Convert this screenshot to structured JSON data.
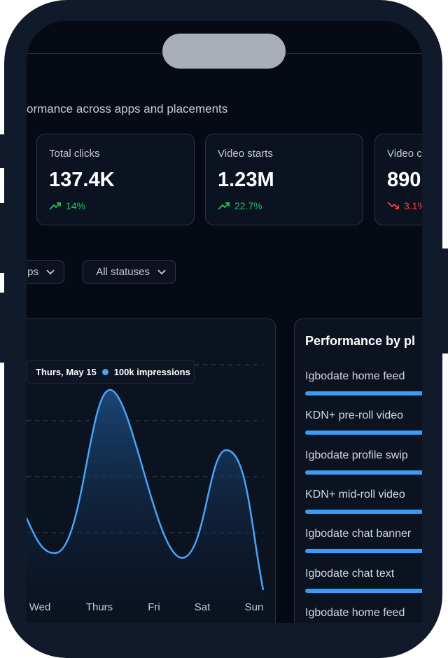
{
  "header": {
    "subtitle": "ormance across apps and placements"
  },
  "cards": [
    {
      "label": "Total clicks",
      "value": "137.4K",
      "change": "14%",
      "trend": "up"
    },
    {
      "label": "Video starts",
      "value": "1.23M",
      "change": "22.7%",
      "trend": "up"
    },
    {
      "label": "Video c",
      "value": "890",
      "change": "3.1%",
      "trend": "down"
    }
  ],
  "filters": [
    {
      "label": "ps"
    },
    {
      "label": "All statuses"
    }
  ],
  "chart": {
    "tooltip": {
      "date": "Thurs, May 15",
      "value": "100k impressions"
    },
    "x_labels": [
      "Wed",
      "Thurs",
      "Fri",
      "Sat",
      "Sun"
    ]
  },
  "placements": {
    "title": "Performance by pl",
    "items": [
      "Igbodate home feed",
      "KDN+ pre-roll video",
      "Igbodate profile swip",
      "KDN+ mid-roll video",
      "Igbodate chat banner",
      "Igbodate chat text",
      "Igbodate home feed"
    ]
  }
}
